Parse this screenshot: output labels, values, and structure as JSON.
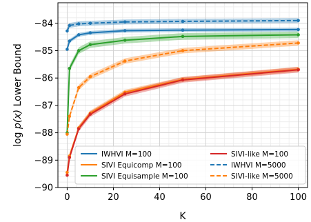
{
  "chart_data": {
    "type": "line",
    "xlabel": "K",
    "ylabel_prefix": "log ",
    "ylabel_math": "p(x)",
    "ylabel_suffix": " Lower Bound",
    "xlim": [
      -4,
      104
    ],
    "ylim": [
      -90,
      -83.25
    ],
    "xticks": [
      0,
      20,
      40,
      60,
      80,
      100
    ],
    "xtick_labels": [
      "0",
      "20",
      "40",
      "60",
      "80",
      "100"
    ],
    "yticks": [
      -90,
      -89,
      -88,
      -87,
      -86,
      -85,
      -84
    ],
    "ytick_labels": [
      "−90",
      "−89",
      "−88",
      "−87",
      "−86",
      "−85",
      "−84"
    ],
    "grid": true,
    "legend_position": "lower-right",
    "legend_columns": 2,
    "series": [
      {
        "name": "IWHVI M=100",
        "color": "#1f77b4",
        "style": "solid",
        "x": [
          0,
          1,
          5,
          10,
          25,
          50,
          100
        ],
        "y": [
          -84.95,
          -84.65,
          -84.42,
          -84.35,
          -84.27,
          -84.25,
          -84.23
        ],
        "band": 0.07
      },
      {
        "name": "SIVI Equicomp M=100",
        "color": "#ff7f0e",
        "style": "solid",
        "x": [
          0,
          1,
          5,
          10,
          25,
          50,
          100
        ],
        "y": [
          -89.45,
          -88.85,
          -87.82,
          -87.28,
          -86.52,
          -86.05,
          -85.68
        ],
        "band": 0.09
      },
      {
        "name": "SIVI Equisample M=100",
        "color": "#2ca02c",
        "style": "solid",
        "x": [
          0,
          1,
          5,
          10,
          25,
          50,
          100
        ],
        "y": [
          -88.0,
          -85.65,
          -85.0,
          -84.78,
          -84.62,
          -84.48,
          -84.42
        ],
        "band": 0.12
      },
      {
        "name": "SIVI-like M=100",
        "color": "#d62728",
        "style": "solid",
        "x": [
          0,
          1,
          5,
          10,
          25,
          50,
          100
        ],
        "y": [
          -89.55,
          -88.9,
          -87.85,
          -87.32,
          -86.58,
          -86.07,
          -85.7
        ],
        "band": 0.1
      },
      {
        "name": "IWHVI M=5000",
        "color": "#1f77b4",
        "style": "dashed",
        "x": [
          0,
          1,
          5,
          10,
          25,
          50,
          100
        ],
        "y": [
          -84.28,
          -84.08,
          -84.02,
          -84.0,
          -83.95,
          -83.93,
          -83.9
        ],
        "band": 0.09
      },
      {
        "name": "SIVI-like M=5000",
        "color": "#ff7f0e",
        "style": "dashed",
        "x": [
          0,
          1,
          5,
          10,
          25,
          50,
          100
        ],
        "y": [
          -88.05,
          -87.4,
          -86.35,
          -85.95,
          -85.38,
          -85.0,
          -84.72
        ],
        "band": 0.1
      }
    ],
    "legend_order": [
      "IWHVI M=100",
      "SIVI Equicomp M=100",
      "SIVI Equisample M=100",
      "SIVI-like M=100",
      "IWHVI M=5000",
      "SIVI-like M=5000"
    ]
  }
}
